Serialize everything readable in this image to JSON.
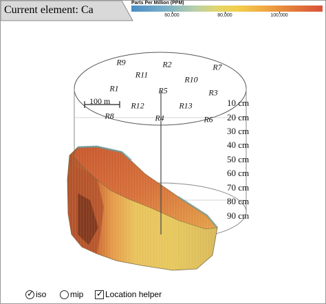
{
  "title": "Current element: Ca",
  "legend": {
    "title": "Parts Per Million (PPM)",
    "ticks": [
      "60,000",
      "80,000",
      "100,000"
    ],
    "colors": [
      "#4b8cc4",
      "#b7cfaa",
      "#f2cf4c",
      "#e27a3b",
      "#d9513a"
    ]
  },
  "regions": [
    "R9",
    "R2",
    "R7",
    "R11",
    "R10",
    "R5",
    "R1",
    "R3",
    "R12",
    "R13",
    "R8",
    "R4",
    "R6"
  ],
  "scale_bar": {
    "label": "100 m"
  },
  "depths": [
    "10 cm",
    "20 cm",
    "30 cm",
    "40 cm",
    "50 cm",
    "60 cm",
    "70 cm",
    "80 cm",
    "90 cm"
  ],
  "controls": {
    "iso": {
      "label": "iso",
      "selected": true
    },
    "mip": {
      "label": "mip",
      "selected": false
    },
    "location_helper": {
      "label": "Location helper",
      "checked": true
    }
  }
}
